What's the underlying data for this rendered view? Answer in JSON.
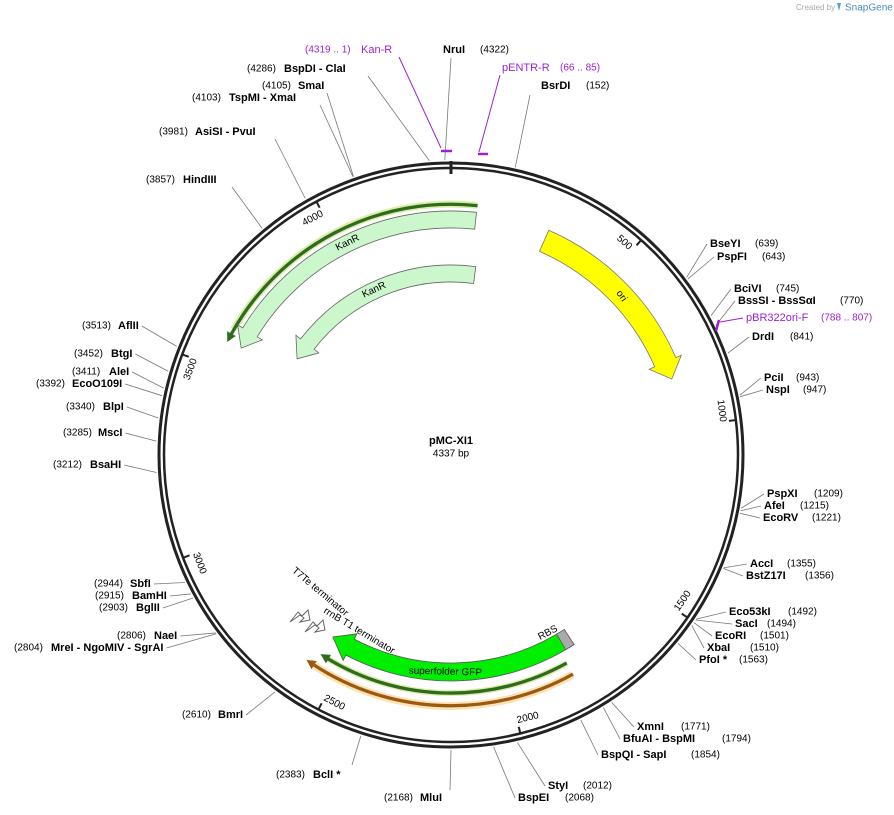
{
  "header": {
    "created_by": "Created by",
    "brand": "SnapGene"
  },
  "plasmid": {
    "name": "pMC-XI1",
    "length": {
      "value": 4337,
      "label": "4337 bp"
    }
  },
  "ticks": [
    500,
    1000,
    1500,
    2000,
    2500,
    3000,
    3500,
    4000
  ],
  "sites": [
    {
      "name": "NruI",
      "position": "(4322)"
    },
    {
      "name": "BsrDI",
      "position": "(152)"
    },
    {
      "name": "BseYI",
      "position": "(639)"
    },
    {
      "name": "PspFI",
      "position": "(643)"
    },
    {
      "name": "BciVI",
      "position": "(745)"
    },
    {
      "name": "BssSI  - BssSαI",
      "position": "(770)"
    },
    {
      "name": "DrdI",
      "position": "(841)"
    },
    {
      "name": "PciI",
      "position": "(943)"
    },
    {
      "name": "NspI",
      "position": "(947)"
    },
    {
      "name": "PspXI",
      "position": "(1209)"
    },
    {
      "name": "AfeI",
      "position": "(1215)"
    },
    {
      "name": "EcoRV",
      "position": "(1221)"
    },
    {
      "name": "AccI",
      "position": "(1355)"
    },
    {
      "name": "BstZ17I",
      "position": "(1356)"
    },
    {
      "name": "Eco53kI",
      "position": "(1492)"
    },
    {
      "name": "SacI",
      "position": "(1494)"
    },
    {
      "name": "EcoRI",
      "position": "(1501)"
    },
    {
      "name": "XbaI",
      "position": "(1510)"
    },
    {
      "name": "PfoI *",
      "position": "(1563)"
    },
    {
      "name": "XmnI",
      "position": "(1771)"
    },
    {
      "name": "BfuAI  - BspMI",
      "position": "(1794)"
    },
    {
      "name": "BspQI  - SapI",
      "position": "(1854)"
    },
    {
      "name": "StyI",
      "position": "(2012)"
    },
    {
      "name": "BspEI",
      "position": "(2068)"
    },
    {
      "name": "MluI",
      "position": "(2168)"
    },
    {
      "name": "BclI *",
      "position": "(2383)"
    },
    {
      "name": "BmrI",
      "position": "(2610)"
    },
    {
      "name": "MreI  - NgoMIV  - SgrAI",
      "position": "(2804)"
    },
    {
      "name": "NaeI",
      "position": "(2806)"
    },
    {
      "name": "BglII",
      "position": "(2903)"
    },
    {
      "name": "BamHI",
      "position": "(2915)"
    },
    {
      "name": "SbfI",
      "position": "(2944)"
    },
    {
      "name": "BsaHI",
      "position": "(3212)"
    },
    {
      "name": "MscI",
      "position": "(3285)"
    },
    {
      "name": "BlpI",
      "position": "(3340)"
    },
    {
      "name": "EcoO109I",
      "position": "(3392)"
    },
    {
      "name": "AleI",
      "position": "(3411)"
    },
    {
      "name": "BtgI",
      "position": "(3452)"
    },
    {
      "name": "AflII",
      "position": "(3513)"
    },
    {
      "name": "HindIII",
      "position": "(3857)"
    },
    {
      "name": "AsiSI  - PvuI",
      "position": "(3981)"
    },
    {
      "name": "TspMI  - XmaI",
      "position": "(4103)"
    },
    {
      "name": "SmaI",
      "position": "(4105)"
    },
    {
      "name": "BspDI  - ClaI",
      "position": "(4286)"
    }
  ],
  "primers": [
    {
      "name": "Kan-R",
      "position": "(4319 .. 1)"
    },
    {
      "name": "pENTR-R",
      "position": "(66 .. 85)"
    },
    {
      "name": "pBR322ori-F",
      "position": "(788 .. 807)"
    }
  ],
  "features": [
    {
      "label": "KanR"
    },
    {
      "label": "KanR"
    },
    {
      "label": "ori"
    },
    {
      "label": "superfolder GFP"
    },
    {
      "label": "RBS"
    },
    {
      "label": "T7Te terminator"
    },
    {
      "label": "rrnB T1 terminator"
    }
  ]
}
